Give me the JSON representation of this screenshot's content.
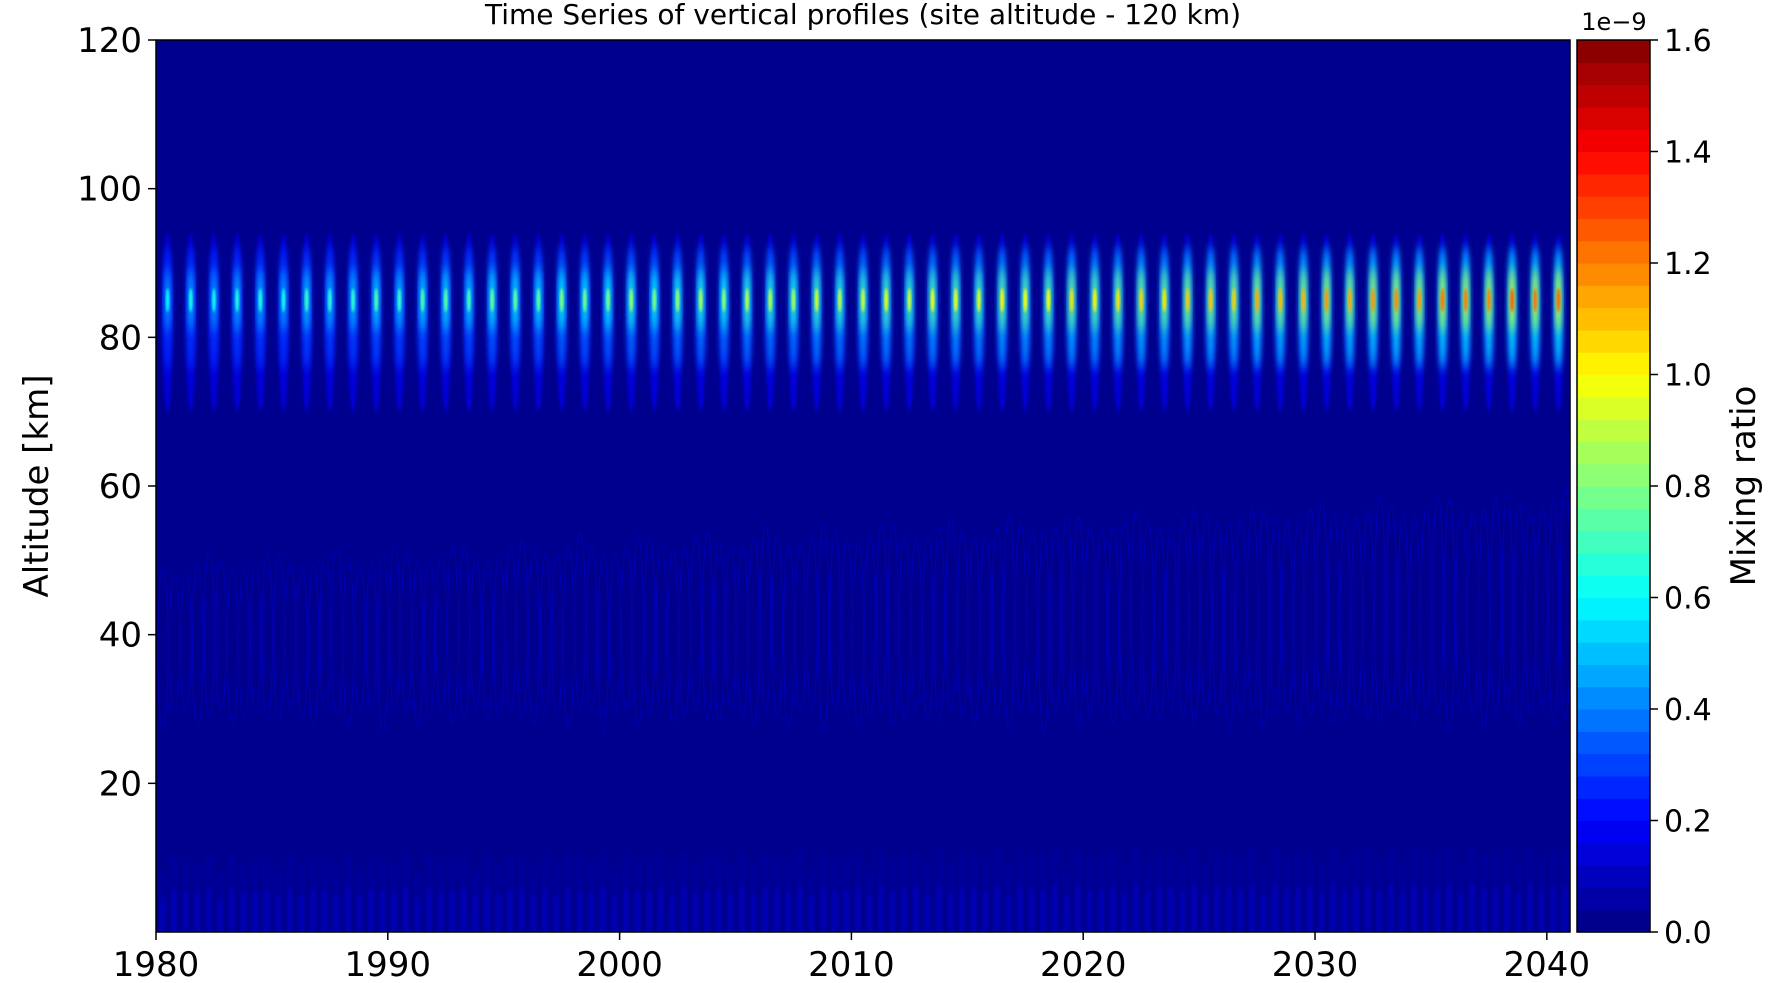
{
  "chart_data": {
    "type": "heatmap",
    "title": "Time Series of vertical profiles (site altitude - 120 km)",
    "xlabel": "",
    "ylabel": "Altitude [km]",
    "xlim": [
      1980,
      2041
    ],
    "ylim": [
      0,
      120
    ],
    "x_ticks": [
      1980,
      1990,
      2000,
      2010,
      2020,
      2030,
      2040
    ],
    "y_ticks": [
      20,
      40,
      60,
      80,
      100,
      120
    ],
    "colorbar": {
      "label": "Mixing ratio",
      "offset_text": "1e−9",
      "colormap": "jet",
      "levels": 40,
      "range": [
        0.0,
        1.6
      ],
      "ticks": [
        "0.0",
        "0.2",
        "0.4",
        "0.6",
        "0.8",
        "1.0",
        "1.2",
        "1.4",
        "1.6"
      ]
    },
    "background_value": 0.0,
    "features": [
      {
        "name": "mesospheric seasonal maxima",
        "altitude_range_km": [
          70,
          94
        ],
        "peak_altitude_km": 85,
        "period_years": 1,
        "first_peak_year": 1980.5,
        "peak_value_range": [
          0.6,
          1.25
        ],
        "peak_value_trend": "increasing"
      },
      {
        "name": "stratospheric band",
        "altitude_range_km": [
          27,
          60
        ],
        "period_years": 0.5,
        "value_range": [
          0.02,
          0.05
        ],
        "upper_edge_trend_km": [
          51,
          60
        ]
      },
      {
        "name": "tropospheric band",
        "altitude_range_km": [
          0,
          10
        ],
        "period_years": 0.5,
        "value_range": [
          0.02,
          0.12
        ]
      }
    ]
  }
}
